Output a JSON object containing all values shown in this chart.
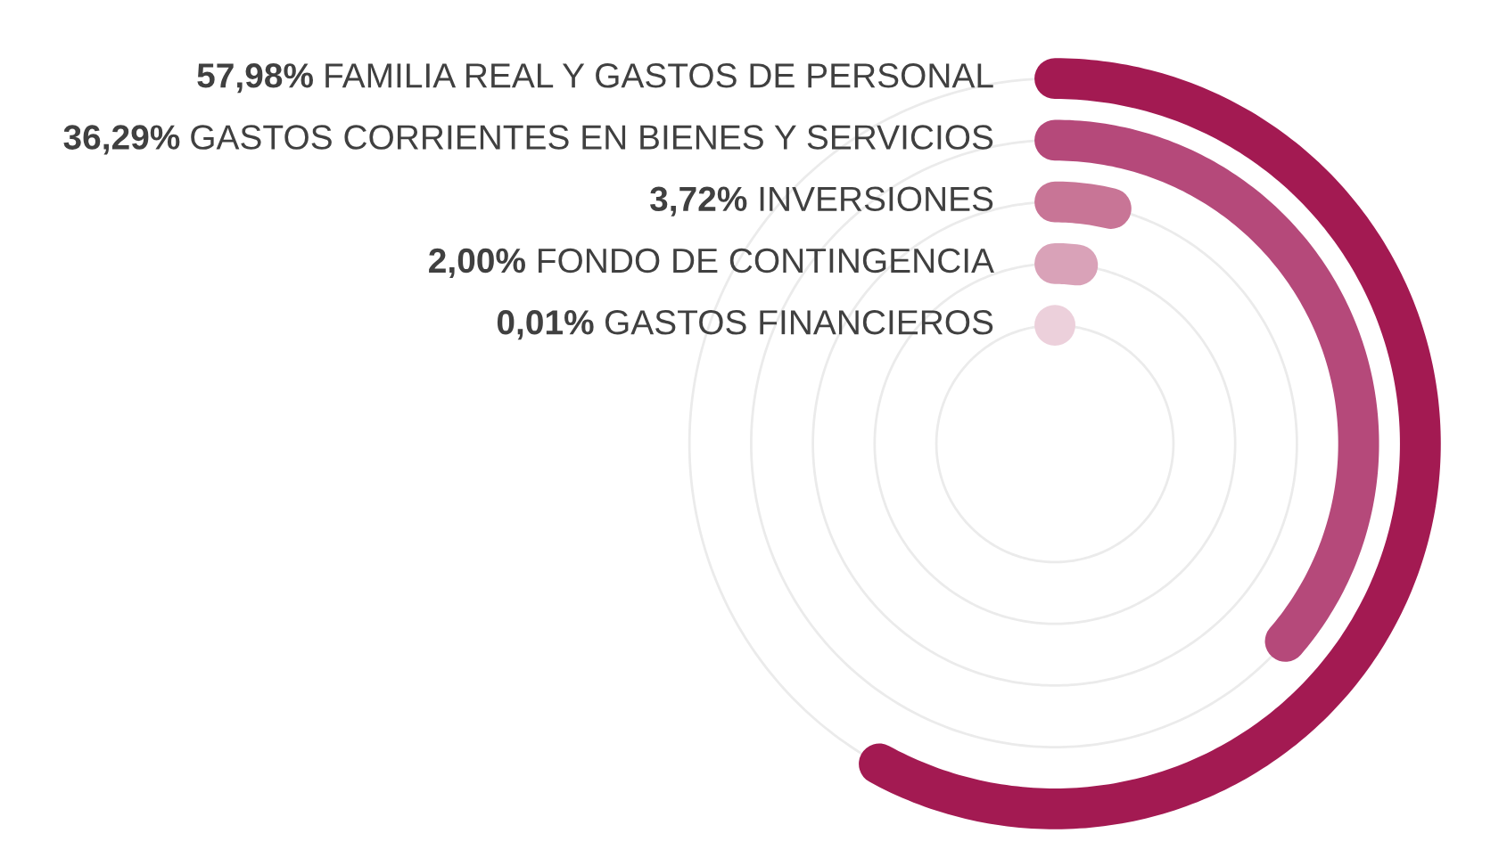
{
  "chart_data": {
    "type": "other",
    "categories": [
      "FAMILIA REAL Y GASTOS DE PERSONAL",
      "GASTOS CORRIENTES EN BIENES Y SERVICIOS",
      "INVERSIONES",
      "FONDO DE CONTINGENCIA",
      "GASTOS FINANCIEROS"
    ],
    "values": [
      57.98,
      36.29,
      3.72,
      2.0,
      0.01
    ],
    "value_labels": [
      "57,98%",
      "36,29%",
      "3,72%",
      "2,00%",
      "0,01%"
    ],
    "colors": [
      "#a31a52",
      "#b5497a",
      "#c87596",
      "#d9a2b8",
      "#ecd0db"
    ]
  }
}
